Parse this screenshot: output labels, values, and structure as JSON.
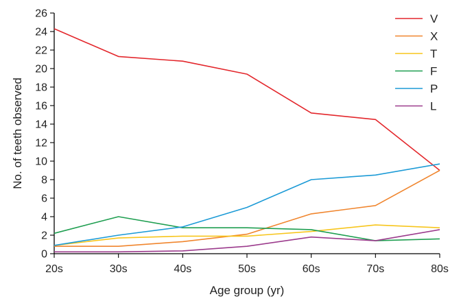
{
  "chart_data": {
    "type": "line",
    "title": "",
    "xlabel": "Age group (yr)",
    "ylabel": "No. of teeth observed",
    "categories": [
      "20s",
      "30s",
      "40s",
      "50s",
      "60s",
      "70s",
      "80s"
    ],
    "ylim": [
      0,
      26
    ],
    "yticks": [
      0,
      2,
      4,
      6,
      8,
      10,
      12,
      14,
      16,
      18,
      20,
      22,
      24,
      26
    ],
    "grid": false,
    "legend_position": "top-right",
    "series": [
      {
        "name": "V",
        "color": "#e3262b",
        "values": [
          24.3,
          21.3,
          20.8,
          19.4,
          15.2,
          14.5,
          9.0
        ]
      },
      {
        "name": "X",
        "color": "#f0852d",
        "values": [
          0.8,
          0.8,
          1.3,
          2.1,
          4.3,
          5.2,
          9.0
        ]
      },
      {
        "name": "T",
        "color": "#f7c51b",
        "values": [
          0.9,
          1.7,
          1.9,
          1.9,
          2.4,
          3.1,
          2.8
        ]
      },
      {
        "name": "F",
        "color": "#1e9e50",
        "values": [
          2.2,
          4.0,
          2.8,
          2.8,
          2.6,
          1.4,
          1.6
        ]
      },
      {
        "name": "P",
        "color": "#1b9ad6",
        "values": [
          0.9,
          2.0,
          2.9,
          5.0,
          8.0,
          8.5,
          9.7
        ]
      },
      {
        "name": "L",
        "color": "#9b3a8c",
        "values": [
          0.2,
          0.2,
          0.3,
          0.8,
          1.8,
          1.4,
          2.6
        ]
      }
    ]
  }
}
